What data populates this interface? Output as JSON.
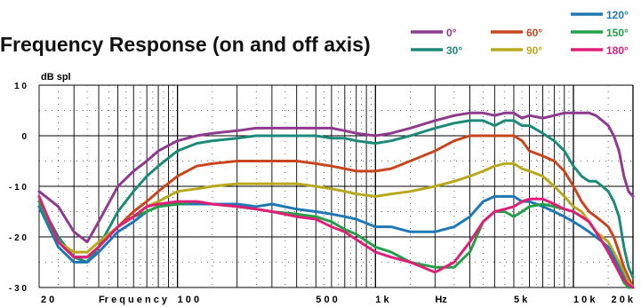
{
  "chart_data": {
    "type": "line",
    "title": "Frequency Response (on and off axis)",
    "ylabel": "dB spl",
    "xlabel": "Frequency",
    "x_scale": "log",
    "xlim": [
      20,
      20000
    ],
    "ylim": [
      -30,
      10
    ],
    "grid": true,
    "legend_position": "top-right",
    "y_ticks": [
      {
        "value": 10,
        "label": "1 0"
      },
      {
        "value": 0,
        "label": "0"
      },
      {
        "value": -10,
        "label": "- 1 0"
      },
      {
        "value": -20,
        "label": "- 2 0"
      },
      {
        "value": -30,
        "label": "- 3 0"
      }
    ],
    "x_tick_labels": [
      {
        "value": 20,
        "label": "2 0"
      },
      {
        "value": 40,
        "label": "Fr e q u e n c y"
      },
      {
        "value": 100,
        "label": "1 0 0"
      },
      {
        "value": 500,
        "label": "5 0 0"
      },
      {
        "value": 1000,
        "label": "1 k"
      },
      {
        "value": 2000,
        "label": "Hz"
      },
      {
        "value": 5000,
        "label": "5 k"
      },
      {
        "value": 10000,
        "label": "1 0 k"
      },
      {
        "value": 20000,
        "label": "2 0 k"
      }
    ],
    "x": [
      20,
      25,
      30,
      35,
      40,
      50,
      60,
      70,
      80,
      100,
      125,
      150,
      200,
      250,
      300,
      400,
      500,
      600,
      700,
      800,
      1000,
      1200,
      1500,
      2000,
      2500,
      3000,
      3500,
      4000,
      4500,
      5000,
      5500,
      6000,
      7000,
      8000,
      9000,
      10000,
      11000,
      12000,
      13000,
      14000,
      15000,
      16000,
      17000,
      18000,
      19000,
      20000
    ],
    "series": [
      {
        "name": "0°",
        "color": "#8e3a8e",
        "values": [
          -11,
          -14,
          -19,
          -21,
          -17,
          -10,
          -7,
          -5,
          -3,
          -1,
          0,
          0.5,
          1,
          1.5,
          1.5,
          1.5,
          1.5,
          1.5,
          1,
          0.5,
          0,
          0.5,
          1.5,
          3,
          4,
          4.5,
          4.5,
          4,
          4.5,
          4.5,
          3.5,
          4,
          3.5,
          4,
          4.5,
          4.5,
          4.5,
          4.5,
          4,
          3,
          2,
          0,
          -3,
          -8,
          -11,
          -12
        ]
      },
      {
        "name": "30°",
        "color": "#1b8a78",
        "values": [
          -13,
          -20,
          -24,
          -25,
          -22,
          -15,
          -11,
          -8,
          -6,
          -3,
          -1.5,
          -1,
          -0.5,
          0,
          0,
          0,
          0,
          -0.5,
          -0.5,
          -1,
          -1.5,
          -1,
          0,
          1.5,
          2.5,
          3,
          3,
          2,
          3,
          3,
          2,
          2,
          0.5,
          -1,
          -3,
          -6,
          -8,
          -9,
          -9,
          -10,
          -11,
          -13,
          -16,
          -22,
          -26,
          -28
        ]
      },
      {
        "name": "60°",
        "color": "#c8461e",
        "values": [
          -14,
          -21,
          -24,
          -24,
          -22,
          -18,
          -15,
          -13,
          -11,
          -8,
          -6,
          -5.5,
          -5,
          -5,
          -5,
          -5,
          -5.5,
          -6,
          -6.5,
          -7,
          -7,
          -6.5,
          -5,
          -3,
          -1,
          0,
          0,
          0,
          0,
          0,
          -1,
          -3,
          -4,
          -5,
          -7,
          -10,
          -13,
          -15,
          -16,
          -17,
          -18,
          -20,
          -23,
          -26,
          -28,
          -30
        ]
      },
      {
        "name": "90°",
        "color": "#b8a81c",
        "values": [
          -14,
          -21,
          -23,
          -23,
          -21,
          -18,
          -16,
          -14,
          -13,
          -11,
          -10.5,
          -10,
          -9.5,
          -9.5,
          -9.5,
          -9.5,
          -10,
          -10.5,
          -11,
          -11.5,
          -12,
          -11.5,
          -11,
          -10,
          -9,
          -8,
          -7,
          -6,
          -5.5,
          -5.5,
          -6.5,
          -7,
          -8,
          -10,
          -12,
          -14,
          -15,
          -17,
          -19,
          -20,
          -21,
          -23,
          -25,
          -27,
          -29,
          -30
        ]
      },
      {
        "name": "120°",
        "color": "#1e78b4",
        "values": [
          -14,
          -22,
          -25,
          -25,
          -23,
          -19,
          -17,
          -15,
          -14,
          -13.5,
          -13.5,
          -13.5,
          -13.5,
          -14,
          -13.5,
          -14.5,
          -15,
          -15.5,
          -16,
          -16.5,
          -18,
          -18,
          -19,
          -19,
          -18,
          -16,
          -13,
          -12,
          -12,
          -12,
          -13,
          -13,
          -14,
          -15,
          -16,
          -17,
          -18,
          -19,
          -20,
          -21,
          -22,
          -24,
          -26,
          -28,
          -30,
          -30
        ]
      },
      {
        "name": "150°",
        "color": "#21a045",
        "values": [
          -13,
          -21,
          -24,
          -24,
          -22,
          -18,
          -16,
          -15,
          -14,
          -13.5,
          -13,
          -13.5,
          -14,
          -14.5,
          -15,
          -15.5,
          -16,
          -17,
          -18.5,
          -19.5,
          -22,
          -23,
          -25,
          -26,
          -26,
          -23,
          -17,
          -15,
          -15,
          -16,
          -15,
          -14,
          -13.5,
          -14,
          -14.5,
          -15,
          -16,
          -17,
          -19,
          -21,
          -23,
          -25,
          -27,
          -29,
          -30,
          -30
        ]
      },
      {
        "name": "180°",
        "color": "#e01e78",
        "values": [
          -12,
          -21,
          -24,
          -24,
          -22,
          -18,
          -16,
          -14,
          -13.5,
          -13,
          -13,
          -13.5,
          -14,
          -14.5,
          -15,
          -16,
          -16.5,
          -18,
          -19,
          -20.5,
          -23,
          -24,
          -25,
          -27,
          -25,
          -21,
          -17,
          -15,
          -14.5,
          -14,
          -13,
          -12.5,
          -12.5,
          -13.5,
          -14.5,
          -15,
          -16,
          -17,
          -19,
          -21,
          -23,
          -25,
          -27,
          -28.5,
          -29.5,
          -30
        ]
      }
    ]
  }
}
